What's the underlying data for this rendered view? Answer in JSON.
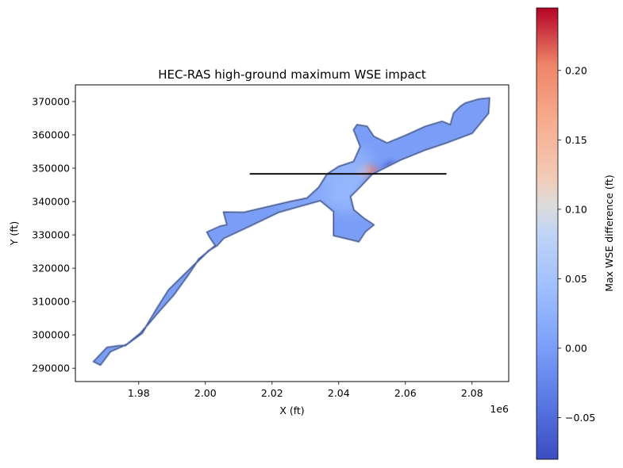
{
  "chart_data": {
    "type": "heatmap",
    "title": "HEC-RAS high-ground maximum WSE impact",
    "xlabel": "X (ft)",
    "ylabel": "Y (ft)",
    "x_offset_label": "1e6",
    "colorbar_label": "Max WSE difference (ft)",
    "xlim": [
      1.961,
      2.091
    ],
    "ylim": [
      286000,
      375000
    ],
    "x_ticks": [
      1.98,
      2.0,
      2.02,
      2.04,
      2.06,
      2.08
    ],
    "x_tick_labels": [
      "1.98",
      "2.00",
      "2.02",
      "2.04",
      "2.06",
      "2.08"
    ],
    "y_ticks": [
      290000,
      300000,
      310000,
      320000,
      330000,
      340000,
      350000,
      360000,
      370000
    ],
    "y_tick_labels": [
      "290000",
      "300000",
      "310000",
      "320000",
      "330000",
      "340000",
      "350000",
      "360000",
      "370000"
    ],
    "colorbar_range": [
      -0.08,
      0.245
    ],
    "colorbar_ticks": [
      -0.05,
      0.0,
      0.05,
      0.1,
      0.15,
      0.2
    ],
    "colorbar_tick_labels": [
      "−0.05",
      "0.00",
      "0.05",
      "0.10",
      "0.15",
      "0.20"
    ],
    "colormap": "coolwarm",
    "grid": false,
    "background_value": 0.0,
    "cross_section_line": {
      "x": [
        2.0133,
        2.0723
      ],
      "y": [
        348300,
        348300
      ],
      "color": "#000000"
    },
    "domain_outline": [
      [
        1.9665,
        292000
      ],
      [
        1.9705,
        296200
      ],
      [
        1.974,
        296700
      ],
      [
        1.976,
        296800
      ],
      [
        1.9805,
        300500
      ],
      [
        1.9865,
        307500
      ],
      [
        1.9905,
        312000
      ],
      [
        1.9945,
        317500
      ],
      [
        1.998,
        322700
      ],
      [
        2.003,
        326800
      ],
      [
        2.0015,
        329000
      ],
      [
        2.0005,
        330800
      ],
      [
        2.0045,
        332600
      ],
      [
        2.0065,
        333000
      ],
      [
        2.0055,
        336800
      ],
      [
        2.0115,
        336700
      ],
      [
        2.0255,
        340000
      ],
      [
        2.0305,
        341000
      ],
      [
        2.034,
        344200
      ],
      [
        2.0365,
        348200
      ],
      [
        2.04,
        350500
      ],
      [
        2.0445,
        352000
      ],
      [
        2.0465,
        356500
      ],
      [
        2.0445,
        361500
      ],
      [
        2.0455,
        363000
      ],
      [
        2.0485,
        362500
      ],
      [
        2.0505,
        359500
      ],
      [
        2.0545,
        357500
      ],
      [
        2.0605,
        360000
      ],
      [
        2.066,
        362500
      ],
      [
        2.071,
        364000
      ],
      [
        2.0735,
        363000
      ],
      [
        2.0745,
        366500
      ],
      [
        2.0765,
        368500
      ],
      [
        2.078,
        369500
      ],
      [
        2.082,
        370700
      ],
      [
        2.0852,
        371000
      ],
      [
        2.0849,
        366500
      ],
      [
        2.08,
        360500
      ],
      [
        2.072,
        357500
      ],
      [
        2.066,
        355500
      ],
      [
        2.0585,
        352500
      ],
      [
        2.05,
        348200
      ],
      [
        2.0465,
        344500
      ],
      [
        2.0435,
        341500
      ],
      [
        2.0445,
        337500
      ],
      [
        2.0475,
        335000
      ],
      [
        2.0505,
        333000
      ],
      [
        2.048,
        331000
      ],
      [
        2.046,
        328000
      ],
      [
        2.044,
        328500
      ],
      [
        2.0385,
        329800
      ],
      [
        2.0385,
        337000
      ],
      [
        2.0345,
        340300
      ],
      [
        2.022,
        336800
      ],
      [
        2.013,
        332500
      ],
      [
        2.0055,
        329000
      ],
      [
        2.0035,
        326800
      ],
      [
        2.001,
        325300
      ],
      [
        1.989,
        313500
      ],
      [
        1.9855,
        308000
      ],
      [
        1.981,
        300500
      ],
      [
        1.9765,
        297200
      ],
      [
        1.9715,
        295000
      ],
      [
        1.9685,
        291000
      ]
    ],
    "values": [
      {
        "x": 2.0495,
        "y": 349200,
        "v": 0.22
      },
      {
        "x": 2.0485,
        "y": 349600,
        "v": 0.18
      },
      {
        "x": 2.0515,
        "y": 347800,
        "v": 0.2
      },
      {
        "x": 2.0465,
        "y": 348800,
        "v": 0.12
      },
      {
        "x": 2.0535,
        "y": 348600,
        "v": -0.03
      },
      {
        "x": 2.0555,
        "y": 350200,
        "v": -0.07
      },
      {
        "x": 2.0415,
        "y": 346000,
        "v": 0.05
      },
      {
        "x": 2.0395,
        "y": 343500,
        "v": 0.04
      },
      {
        "x": 2.045,
        "y": 351500,
        "v": 0.03
      },
      {
        "x": 2.0385,
        "y": 348800,
        "v": 0.03
      },
      {
        "x": 2.034,
        "y": 343000,
        "v": 0.02
      },
      {
        "x": 2.043,
        "y": 341000,
        "v": 0.03
      },
      {
        "x": 2.0265,
        "y": 339500,
        "v": 0.01
      }
    ]
  }
}
